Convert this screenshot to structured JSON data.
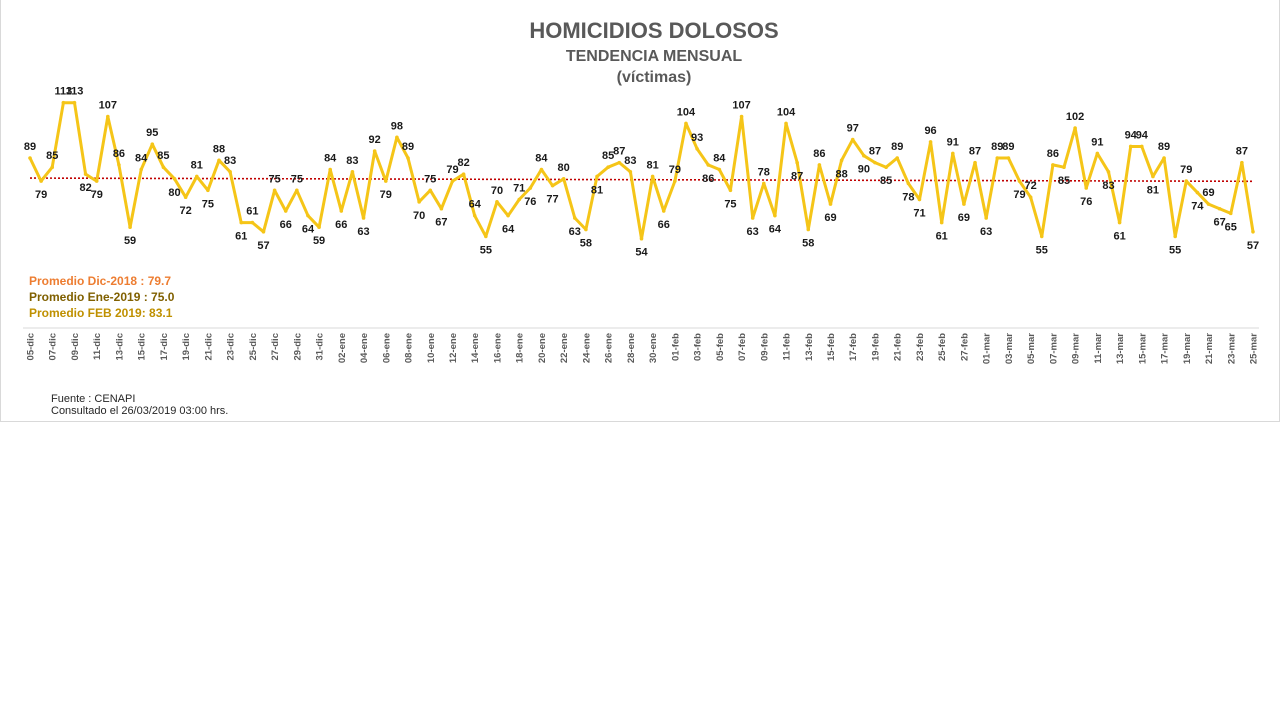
{
  "chart_data": {
    "type": "line",
    "title": "HOMICIDIOS DOLOSOS",
    "subtitle": "TENDENCIA MENSUAL",
    "subtitle2": "(víctimas)",
    "ylim": [
      40,
      125
    ],
    "values": [
      89,
      79,
      85,
      113,
      113,
      82,
      79,
      107,
      86,
      59,
      84,
      95,
      85,
      80,
      72,
      81,
      75,
      88,
      83,
      61,
      61,
      57,
      75,
      66,
      75,
      64,
      59,
      84,
      66,
      83,
      63,
      92,
      79,
      98,
      89,
      70,
      75,
      67,
      79,
      82,
      64,
      55,
      70,
      64,
      71,
      76,
      84,
      77,
      80,
      63,
      58,
      81,
      85,
      87,
      83,
      54,
      81,
      66,
      79,
      104,
      93,
      86,
      84,
      75,
      107,
      63,
      78,
      64,
      104,
      87,
      58,
      86,
      69,
      88,
      97,
      90,
      87,
      85,
      89,
      78,
      71,
      96,
      61,
      91,
      69,
      87,
      63,
      89,
      89,
      79,
      72,
      55,
      86,
      85,
      102,
      76,
      91,
      83,
      61,
      94,
      94,
      81,
      89,
      55,
      79,
      74,
      69,
      67,
      65,
      87,
      57
    ],
    "x_ticks": [
      "05-dic",
      "07-dic",
      "09-dic",
      "11-dic",
      "13-dic",
      "15-dic",
      "17-dic",
      "19-dic",
      "21-dic",
      "23-dic",
      "25-dic",
      "27-dic",
      "29-dic",
      "31-dic",
      "02-ene",
      "04-ene",
      "06-ene",
      "08-ene",
      "10-ene",
      "12-ene",
      "14-ene",
      "16-ene",
      "18-ene",
      "20-ene",
      "22-ene",
      "24-ene",
      "26-ene",
      "28-ene",
      "30-ene",
      "01-feb",
      "03-feb",
      "05-feb",
      "07-feb",
      "09-feb",
      "11-feb",
      "13-feb",
      "15-feb",
      "17-feb",
      "19-feb",
      "21-feb",
      "23-feb",
      "25-feb",
      "27-feb",
      "01-mar",
      "03-mar",
      "05-mar",
      "07-mar",
      "09-mar",
      "11-mar",
      "13-mar",
      "15-mar",
      "17-mar",
      "19-mar",
      "21-mar",
      "23-mar",
      "25-mar"
    ],
    "trendline": {
      "start": 80.3,
      "end": 78.9,
      "style": "dotted",
      "color": "#c00000"
    },
    "series": [
      {
        "values_ref": "values",
        "color": "#f5c518"
      }
    ],
    "grid": false,
    "legend": "none"
  },
  "averages": [
    {
      "label": "Promedio Dic-2018  : 79.7",
      "color": "#ed7d31"
    },
    {
      "label": "Promedio Ene-2019 : 75.0",
      "color": "#806000"
    },
    {
      "label": "Promedio FEB 2019:  83.1",
      "color": "#bf9000"
    }
  ],
  "source": {
    "line1": "Fuente : CENAPI",
    "line2": "Consultado el 26/03/2019  03:00 hrs."
  }
}
